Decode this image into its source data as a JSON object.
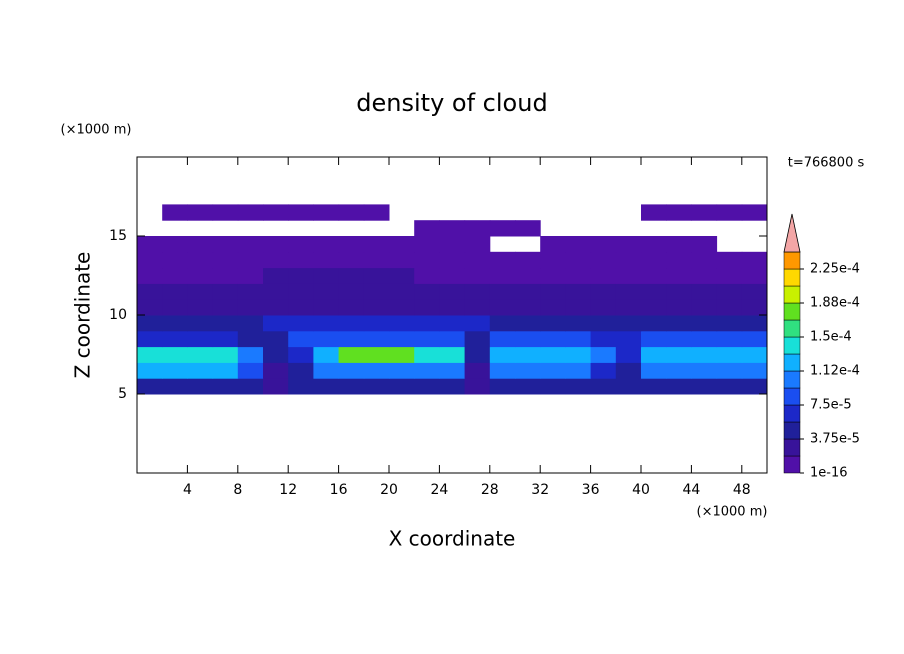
{
  "chart_data": {
    "type": "contour",
    "title": "density of cloud",
    "x_label": "X coordinate",
    "y_label": "Z coordinate",
    "x_unit": "(×1000 m)",
    "y_unit": "(×1000 m)",
    "annotation": "t=766800 s",
    "xlim": [
      0,
      50
    ],
    "xticks": [
      4,
      8,
      12,
      16,
      20,
      24,
      28,
      32,
      36,
      40,
      44,
      48
    ],
    "ylim": [
      0,
      20
    ],
    "yticks": [
      5,
      10,
      15
    ],
    "levels": [
      1e-16,
      1.875e-05,
      3.75e-05,
      5.625e-05,
      7.5e-05,
      9.375e-05,
      0.0001125,
      0.00013125,
      0.00015,
      0.00016875,
      0.0001875,
      0.00020625,
      0.000225,
      0.00024375
    ],
    "colors": [
      "#5010a8",
      "#38139a",
      "#20209a",
      "#1c28c8",
      "#1a4ef0",
      "#1a7aff",
      "#10b0ff",
      "#18e0d8",
      "#30e080",
      "#60e020",
      "#c8f000",
      "#ffd800",
      "#ff9800",
      "#ff4010"
    ],
    "extend_color": "#f4a6a6",
    "colorbar_ticks": [
      1e-16,
      {
        "value": 3.75e-05,
        "label": "3.75e-5"
      },
      {
        "value": 7.5e-05,
        "label": "7.5e-5"
      },
      {
        "value": 0.0001125,
        "label": "1.12e-4"
      },
      {
        "value": 0.00015,
        "label": "1.5e-4"
      },
      {
        "value": 0.0001875,
        "label": "1.88e-4"
      },
      {
        "value": 0.000225,
        "label": "2.25e-4"
      }
    ],
    "x_edges": [
      0,
      2,
      4,
      6,
      8,
      10,
      12,
      14,
      16,
      18,
      20,
      22,
      24,
      26,
      28,
      30,
      32,
      34,
      36,
      38,
      40,
      42,
      44,
      46,
      48,
      50
    ],
    "z_edges": [
      5,
      6,
      7,
      8,
      9,
      10,
      11,
      12,
      13,
      14,
      15,
      16,
      17
    ],
    "field": [
      [
        4e-05,
        4e-05,
        4e-05,
        4e-05,
        4e-05,
        2e-05,
        4e-05,
        4e-05,
        4e-05,
        4e-05,
        4e-05,
        4e-05,
        4e-05,
        2e-05,
        4e-05,
        4e-05,
        4e-05,
        4e-05,
        4e-05,
        4e-05,
        4e-05,
        4e-05,
        4e-05,
        4e-05,
        4e-05
      ],
      [
        0.00012,
        0.00012,
        0.00012,
        0.00012,
        8e-05,
        3e-05,
        4e-05,
        0.00011,
        0.00011,
        0.00011,
        0.00011,
        0.00011,
        0.00011,
        3e-05,
        0.00011,
        0.00011,
        0.00011,
        0.00011,
        6e-05,
        4e-05,
        0.00011,
        0.00011,
        0.00011,
        0.00011,
        0.00011
      ],
      [
        0.00014,
        0.00014,
        0.00014,
        0.00014,
        0.0001,
        4e-05,
        6e-05,
        0.00013,
        0.00017,
        0.00017,
        0.00017,
        0.00014,
        0.00014,
        4e-05,
        0.00013,
        0.00013,
        0.00013,
        0.00013,
        0.0001,
        6e-05,
        0.00013,
        0.00013,
        0.00013,
        0.00013,
        0.00013
      ],
      [
        6e-05,
        6e-05,
        6e-05,
        6e-05,
        4e-05,
        4e-05,
        9e-05,
        9e-05,
        9e-05,
        9e-05,
        9e-05,
        9e-05,
        9e-05,
        4e-05,
        8e-05,
        8e-05,
        8e-05,
        8e-05,
        6e-05,
        6e-05,
        8e-05,
        8e-05,
        8e-05,
        8e-05,
        8e-05
      ],
      [
        4e-05,
        4e-05,
        4e-05,
        4e-05,
        4e-05,
        6e-05,
        6e-05,
        6e-05,
        6e-05,
        6e-05,
        6e-05,
        6e-05,
        6e-05,
        6e-05,
        4e-05,
        4e-05,
        4e-05,
        4e-05,
        4e-05,
        4e-05,
        4e-05,
        4e-05,
        4e-05,
        4e-05,
        4e-05
      ],
      [
        3e-05,
        3e-05,
        3e-05,
        3e-05,
        3e-05,
        3e-05,
        3e-05,
        3e-05,
        3e-05,
        3e-05,
        3e-05,
        3e-05,
        3e-05,
        3e-05,
        3e-05,
        3e-05,
        3e-05,
        3e-05,
        3e-05,
        3e-05,
        3e-05,
        3e-05,
        3e-05,
        3e-05,
        3e-05
      ],
      [
        2e-05,
        2e-05,
        2e-05,
        2e-05,
        2e-05,
        2e-05,
        2e-05,
        2e-05,
        2e-05,
        2e-05,
        2e-05,
        2e-05,
        2e-05,
        2e-05,
        2e-05,
        2e-05,
        2e-05,
        2e-05,
        2e-05,
        2e-05,
        2e-05,
        2e-05,
        2e-05,
        2e-05,
        2e-05
      ],
      [
        1e-06,
        1e-06,
        1e-06,
        1e-06,
        1e-06,
        2e-05,
        2e-05,
        2e-05,
        2e-05,
        2e-05,
        2e-05,
        1e-06,
        1e-06,
        1e-06,
        1e-06,
        1e-06,
        1e-06,
        1e-06,
        1e-06,
        1e-06,
        1e-06,
        1e-06,
        1e-06,
        1e-06,
        1e-06
      ],
      [
        1e-06,
        1e-06,
        1e-06,
        1e-06,
        1e-06,
        1e-06,
        1e-06,
        1e-06,
        1e-06,
        1e-06,
        1e-06,
        1e-06,
        1e-06,
        1e-06,
        1e-06,
        1e-06,
        1e-06,
        1e-06,
        1e-06,
        1e-06,
        1e-06,
        1e-06,
        1e-06,
        1e-06,
        1e-06
      ],
      [
        1e-06,
        1e-06,
        1e-06,
        1e-06,
        1e-06,
        1e-06,
        1e-06,
        1e-06,
        1e-06,
        1e-06,
        1e-06,
        1e-06,
        1e-06,
        1e-06,
        null,
        null,
        1e-06,
        1e-06,
        1e-06,
        1e-06,
        1e-06,
        1e-06,
        1e-06,
        null,
        null
      ],
      [
        null,
        null,
        null,
        null,
        null,
        null,
        null,
        null,
        null,
        null,
        null,
        1e-06,
        1e-06,
        1e-06,
        1e-06,
        1e-06,
        null,
        null,
        null,
        null,
        null,
        null,
        null,
        null,
        null
      ],
      [
        null,
        1e-06,
        1e-06,
        1e-06,
        1e-06,
        1e-06,
        1e-06,
        1e-06,
        1e-06,
        1e-06,
        null,
        null,
        null,
        null,
        null,
        null,
        null,
        null,
        null,
        null,
        1e-06,
        1e-06,
        1e-06,
        1e-06,
        1e-06
      ]
    ]
  }
}
